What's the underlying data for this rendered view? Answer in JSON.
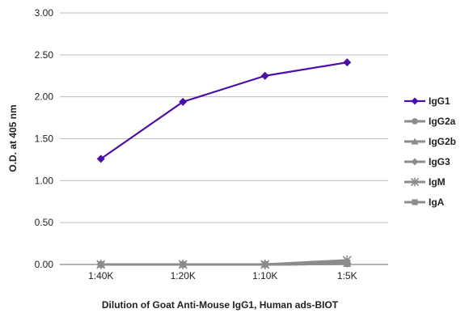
{
  "chart_data": {
    "type": "line",
    "categories": [
      "1:40K",
      "1:20K",
      "1:10K",
      "1:5K"
    ],
    "xlabel": "Dilution of Goat Anti-Mouse IgG1, Human ads-BIOT",
    "ylabel": "O.D. at 405 nm",
    "ylim": [
      0,
      3
    ],
    "yticks": [
      "0.00",
      "0.50",
      "1.00",
      "1.50",
      "2.00",
      "2.50",
      "3.00"
    ],
    "grid": true,
    "legend_position": "right",
    "series": [
      {
        "name": "IgG1",
        "values": [
          1.26,
          1.94,
          2.25,
          2.41
        ],
        "color": "#4B0FAA",
        "marker": "diamond"
      },
      {
        "name": "IgG2a",
        "values": [
          0.0,
          0.0,
          0.0,
          0.01
        ],
        "color": "#8C8C8C",
        "marker": "circle"
      },
      {
        "name": "IgG2b",
        "values": [
          0.0,
          0.0,
          0.0,
          0.01
        ],
        "color": "#8C8C8C",
        "marker": "triangle"
      },
      {
        "name": "IgG3",
        "values": [
          0.0,
          0.0,
          0.0,
          0.01
        ],
        "color": "#8C8C8C",
        "marker": "diamond"
      },
      {
        "name": "IgM",
        "values": [
          0.0,
          0.0,
          0.0,
          0.05
        ],
        "color": "#8C8C8C",
        "marker": "star"
      },
      {
        "name": "IgA",
        "values": [
          0.0,
          0.0,
          0.0,
          0.02
        ],
        "color": "#8C8C8C",
        "marker": "square"
      }
    ]
  }
}
